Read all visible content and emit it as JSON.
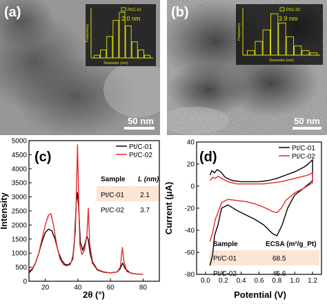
{
  "panel_a": {
    "letter": "(a)",
    "scale_bar_label": "50 nm",
    "inset": {
      "legend": "Pt/C-01",
      "mean_label": "2.0 nm",
      "xlabel": "Diameter (nm)",
      "ylabel": "Frequency",
      "bars": [
        1,
        3,
        8,
        14,
        17,
        12,
        6,
        3,
        1
      ]
    }
  },
  "panel_b": {
    "letter": "(b)",
    "scale_bar_label": "50 nm",
    "inset": {
      "legend": "Pt/C-02",
      "mean_label": "3.9 nm",
      "xlabel": "Diameter (nm)",
      "ylabel": "Frequency",
      "bars": [
        2,
        6,
        11,
        18,
        14,
        8,
        4,
        2,
        1
      ]
    }
  },
  "chart_data": [
    {
      "type": "line",
      "panel": "(c)",
      "xlabel": "2θ (°)",
      "ylabel": "Intensity",
      "xlim": [
        10,
        90
      ],
      "ylim": [
        0,
        5000
      ],
      "xticks": [
        20,
        40,
        60,
        80
      ],
      "yticks": [
        0,
        500,
        1000,
        1500,
        2000,
        2500,
        3000,
        3500,
        4000,
        4500,
        5000
      ],
      "legend_position": "top-right",
      "series": [
        {
          "name": "Pt/C-01",
          "color": "#000000",
          "x": [
            10,
            12,
            14,
            16,
            18,
            20,
            22,
            24,
            26,
            28,
            30,
            32,
            34,
            36,
            37,
            38,
            39,
            39.8,
            40.5,
            41.5,
            43,
            44.5,
            45.5,
            46.3,
            47.5,
            49,
            52,
            56,
            60,
            64,
            66,
            67.5,
            69,
            72,
            76,
            80
          ],
          "y": [
            300,
            420,
            650,
            1000,
            1400,
            1730,
            1850,
            1800,
            1500,
            1050,
            750,
            600,
            580,
            680,
            900,
            1500,
            2800,
            3150,
            2600,
            1400,
            1100,
            1350,
            1600,
            1500,
            1000,
            650,
            400,
            320,
            300,
            330,
            450,
            650,
            450,
            300,
            260,
            250
          ]
        },
        {
          "name": "Pt/C-02",
          "color": "#e8262a",
          "x": [
            10,
            12,
            14,
            16,
            18,
            20,
            22,
            23.5,
            25,
            27,
            29,
            31,
            33,
            35,
            37,
            38.5,
            39.3,
            39.8,
            40.4,
            41.2,
            42.5,
            44,
            45.5,
            46.4,
            47.3,
            49,
            52,
            56,
            60,
            64,
            66,
            67.3,
            68.3,
            70,
            73,
            76,
            80
          ],
          "y": [
            350,
            450,
            650,
            1000,
            1500,
            2000,
            2350,
            2400,
            2000,
            1300,
            800,
            600,
            550,
            580,
            800,
            1800,
            3600,
            4850,
            3200,
            1300,
            950,
            1100,
            1600,
            2600,
            1300,
            700,
            420,
            330,
            300,
            330,
            500,
            1200,
            700,
            350,
            280,
            260,
            250
          ]
        }
      ],
      "table": {
        "headers": [
          "Sample",
          "L (nm)"
        ],
        "rows": [
          [
            "Pt/C-01",
            "2.1"
          ],
          [
            "Pt/C-02",
            "3.7"
          ]
        ]
      }
    },
    {
      "type": "line",
      "panel": "(d)",
      "xlabel": "Potential (V)",
      "ylabel": "Current (μA)",
      "xlim": [
        -0.1,
        1.3
      ],
      "ylim": [
        -80,
        40
      ],
      "xticks": [
        0.0,
        0.2,
        0.4,
        0.6,
        0.8,
        1.0,
        1.2
      ],
      "yticks": [
        -80,
        -60,
        -40,
        -20,
        0,
        20,
        40
      ],
      "legend_position": "top-right",
      "series": [
        {
          "name": "Pt/C-01",
          "color": "#000000",
          "x": [
            0.05,
            0.07,
            0.1,
            0.13,
            0.17,
            0.22,
            0.3,
            0.4,
            0.5,
            0.6,
            0.7,
            0.8,
            0.9,
            1.0,
            1.1,
            1.15,
            1.2,
            1.2,
            1.1,
            1.0,
            0.92,
            0.86,
            0.8,
            0.75,
            0.65,
            0.55,
            0.45,
            0.35,
            0.25,
            0.18,
            0.14,
            0.1,
            0.08,
            0.05
          ],
          "y": [
            10,
            14,
            12,
            15,
            13,
            8,
            5,
            4,
            4,
            4,
            5,
            7,
            10,
            13,
            17,
            20,
            24,
            5,
            -2,
            -8,
            -20,
            -35,
            -45,
            -43,
            -35,
            -30,
            -26,
            -22,
            -17,
            -20,
            -35,
            -45,
            -62,
            -72
          ]
        },
        {
          "name": "Pt/C-02",
          "color": "#e8262a",
          "x": [
            0.05,
            0.08,
            0.11,
            0.14,
            0.18,
            0.25,
            0.35,
            0.45,
            0.55,
            0.65,
            0.75,
            0.85,
            0.95,
            1.05,
            1.15,
            1.2,
            1.2,
            1.1,
            1.0,
            0.9,
            0.85,
            0.8,
            0.75,
            0.65,
            0.55,
            0.45,
            0.35,
            0.25,
            0.18,
            0.14,
            0.11,
            0.08,
            0.05
          ],
          "y": [
            5,
            8,
            7,
            9,
            7,
            4,
            2,
            2,
            2,
            2,
            3,
            4,
            6,
            8,
            10,
            12,
            3,
            -2,
            -6,
            -13,
            -20,
            -24,
            -23,
            -19,
            -16,
            -14,
            -13,
            -12,
            -15,
            -24,
            -30,
            -42,
            -50
          ]
        }
      ],
      "table": {
        "headers": [
          "Sample",
          "ECSA (m²/g_Pt)"
        ],
        "rows": [
          [
            "Pt/C-01",
            "68.5"
          ],
          [
            "Pt/C-02",
            "45.6"
          ]
        ]
      }
    }
  ]
}
